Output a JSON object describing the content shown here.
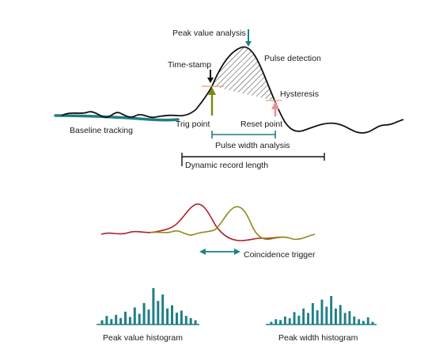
{
  "labels": {
    "peak_value_analysis": "Peak value analysis",
    "pulse_detection": "Pulse detection",
    "time_stamp": "Time-stamp",
    "hysteresis": "Hysteresis",
    "baseline_tracking": "Baseline tracking",
    "trig_point": "Trig point",
    "reset_point": "Reset point",
    "pulse_width_analysis": "Pulse width analysis",
    "dynamic_record_length": "Dynamic record length",
    "coincidence_trigger": "Coincidence trigger",
    "peak_value_histogram": "Peak value histogram",
    "peak_width_histogram": "Peak width histogram"
  },
  "colors": {
    "signal": "#111111",
    "baseline": "#1f7f86",
    "teal": "#1f7f86",
    "trig_arrow": "#7a8a12",
    "reset_arrow": "#e8909a",
    "threshold": "#e2a070",
    "pulse_red": "#b0212a",
    "pulse_olive": "#8f8a1c",
    "histogram": "#1f7f86"
  },
  "histograms": {
    "peak_value": [
      4,
      8,
      5,
      9,
      6,
      12,
      7,
      16,
      10,
      20,
      14,
      34,
      22,
      28,
      15,
      18,
      11,
      13,
      8,
      6,
      4
    ],
    "peak_width": [
      3,
      6,
      5,
      9,
      7,
      14,
      10,
      18,
      13,
      24,
      16,
      28,
      20,
      32,
      18,
      22,
      13,
      15,
      9,
      6,
      4,
      8,
      3
    ]
  }
}
